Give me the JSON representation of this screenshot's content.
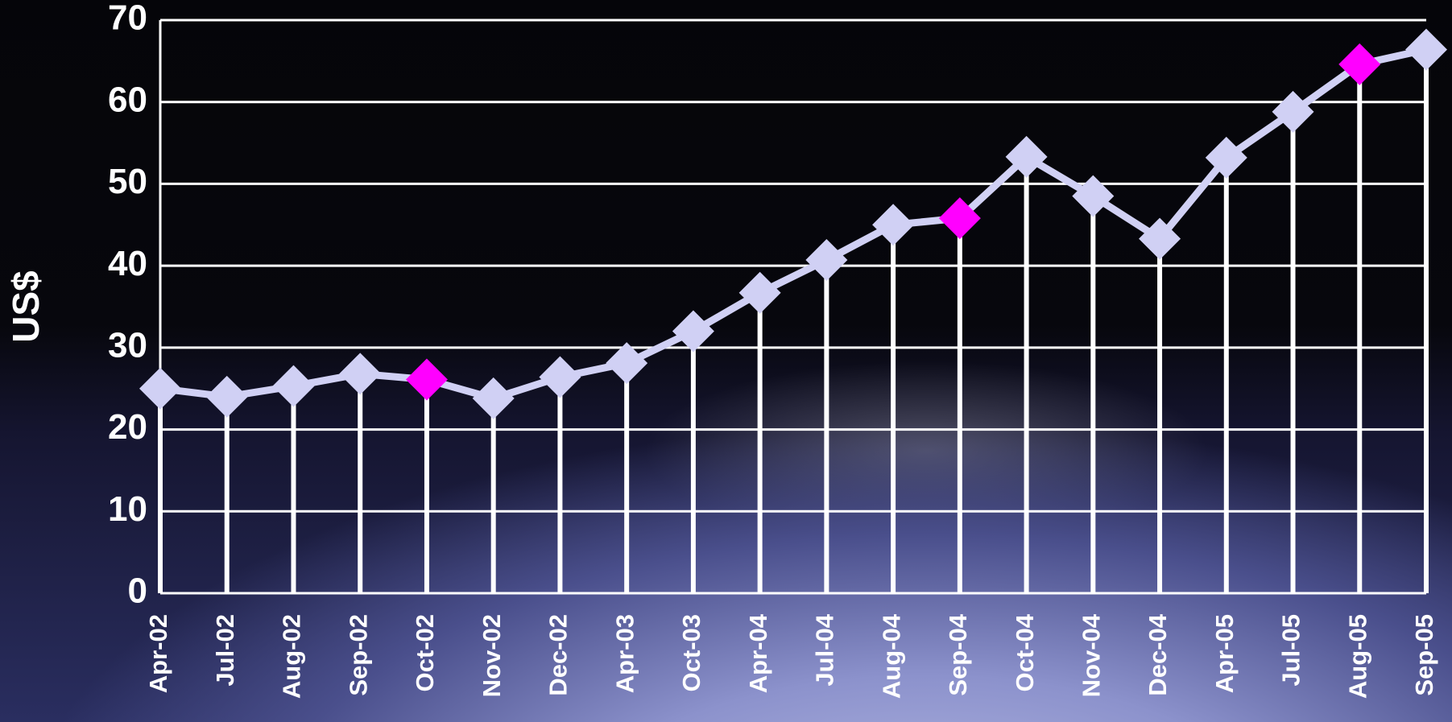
{
  "chart_data": {
    "type": "line",
    "y_label": "US$",
    "categories": [
      "Apr-02",
      "Jul-02",
      "Aug-02",
      "Sep-02",
      "Oct-02",
      "Nov-02",
      "Dec-02",
      "Apr-03",
      "Oct-03",
      "Apr-04",
      "Jul-04",
      "Aug-04",
      "Sep-04",
      "Oct-04",
      "Nov-04",
      "Dec-04",
      "Apr-05",
      "Jul-05",
      "Aug-05",
      "Sep-05"
    ],
    "values": [
      25,
      24,
      25.3,
      26.8,
      26.1,
      23.8,
      26.4,
      28.1,
      32,
      36.7,
      40.7,
      45,
      45.8,
      53.3,
      48.5,
      43.3,
      53.2,
      58.8,
      64.6,
      66.4
    ],
    "color": "#d0d0f4",
    "marker_colors": [
      "#d0d0f4",
      "#d0d0f4",
      "#d0d0f4",
      "#d0d0f4",
      "#ff00ff",
      "#d0d0f4",
      "#d0d0f4",
      "#d0d0f4",
      "#d0d0f4",
      "#d0d0f4",
      "#d0d0f4",
      "#d0d0f4",
      "#ff00ff",
      "#d0d0f4",
      "#d0d0f4",
      "#d0d0f4",
      "#d0d0f4",
      "#d0d0f4",
      "#ff00ff",
      "#d0d0f4"
    ],
    "drop_lines": true,
    "ylim": [
      0,
      70
    ],
    "yticks": [
      0,
      10,
      20,
      30,
      40,
      50,
      60,
      70
    ],
    "grid": true
  }
}
